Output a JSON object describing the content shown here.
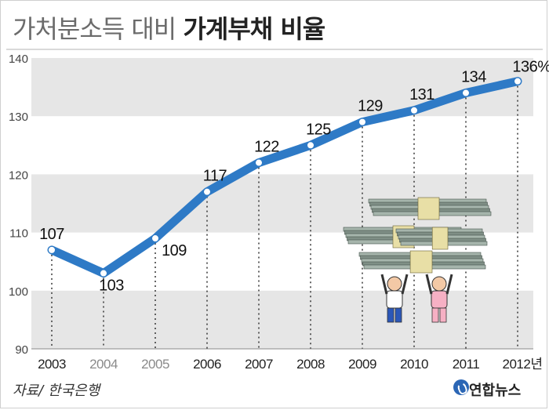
{
  "title": {
    "part1": "가처분소득 대비 ",
    "part2": "가계부채 비율"
  },
  "source": "자료/ 한국은행",
  "brand": "연합뉴스",
  "colors": {
    "line": "#2e7ac6",
    "band": "#e6e6e6",
    "title_light": "#6b6b6b"
  },
  "illustration": "people-carrying-money-stacks",
  "chart_data": {
    "type": "line",
    "title": "가처분소득 대비 가계부채 비율",
    "x": [
      "2003",
      "2004",
      "2005",
      "2006",
      "2007",
      "2008",
      "2009",
      "2010",
      "2011",
      "2012년"
    ],
    "y_ticks": [
      "140",
      "130",
      "120",
      "110",
      "100",
      "90"
    ],
    "ylim": [
      90,
      140
    ],
    "series": [
      {
        "values": [
          107,
          103,
          109,
          117,
          122,
          125,
          129,
          131,
          134,
          136
        ],
        "labels": [
          "107",
          "103",
          "109",
          "117",
          "122",
          "125",
          "129",
          "131",
          "134",
          "136%"
        ]
      }
    ]
  }
}
